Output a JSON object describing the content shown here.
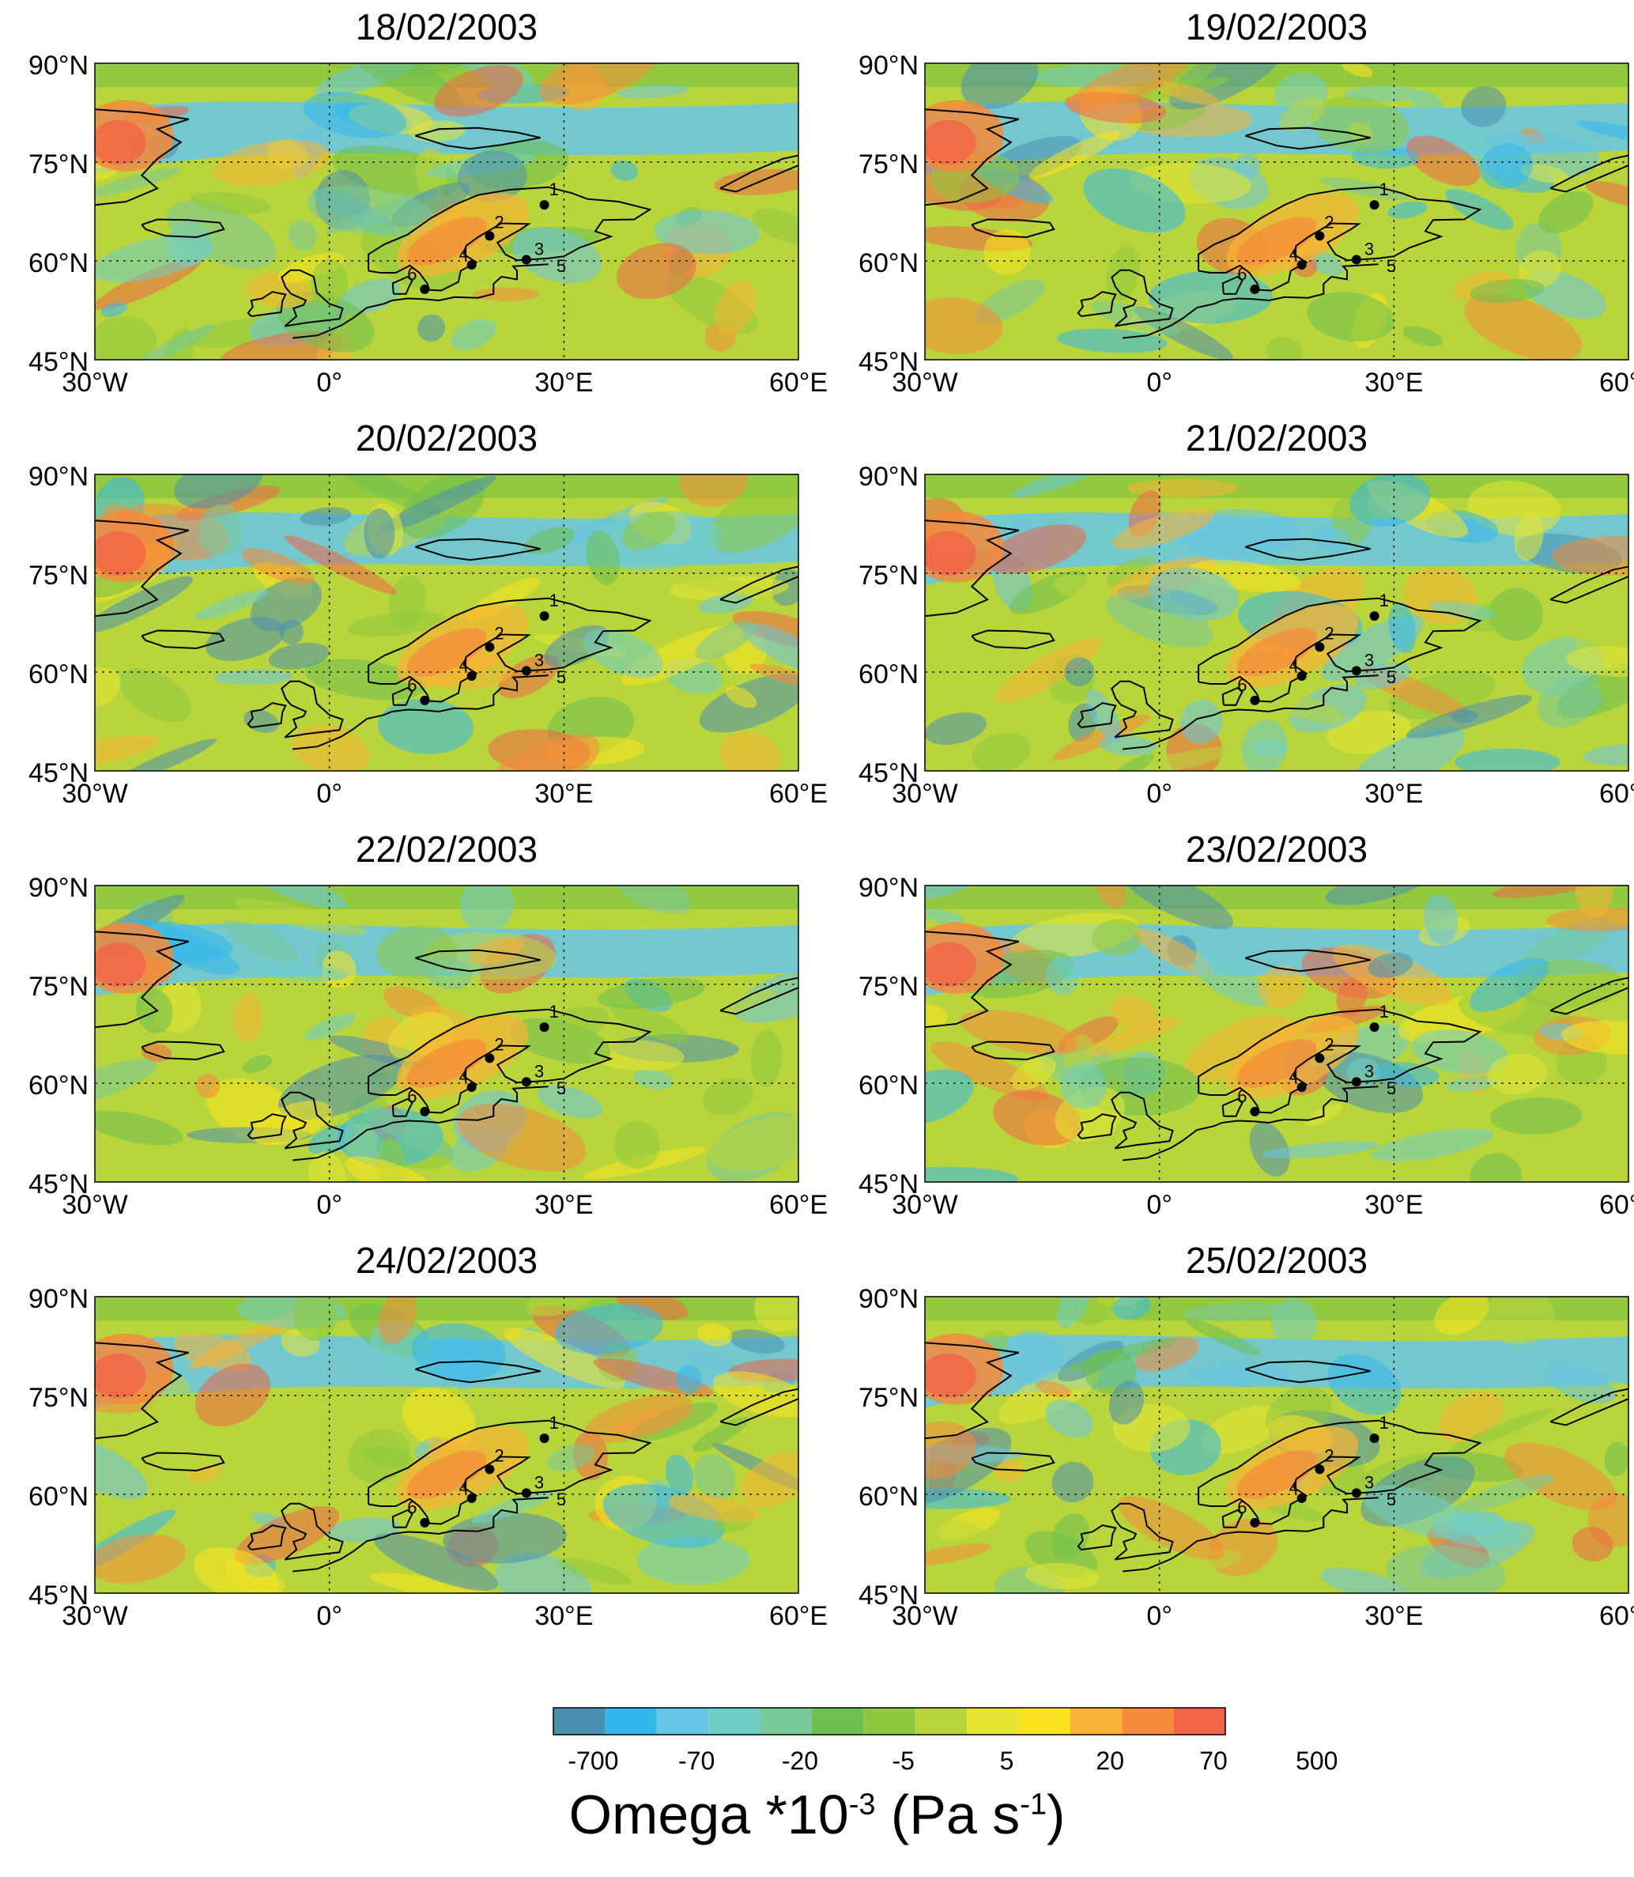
{
  "maps": [
    {
      "date": "18/02/2003"
    },
    {
      "date": "19/02/2003"
    },
    {
      "date": "20/02/2003"
    },
    {
      "date": "21/02/2003"
    },
    {
      "date": "22/02/2003"
    },
    {
      "date": "23/02/2003"
    },
    {
      "date": "24/02/2003"
    },
    {
      "date": "25/02/2003"
    }
  ],
  "lat_ticks": [
    {
      "value": 90,
      "label": "90°N"
    },
    {
      "value": 75,
      "label": "75°N"
    },
    {
      "value": 60,
      "label": "60°N"
    },
    {
      "value": 45,
      "label": "45°N"
    }
  ],
  "lon_ticks": [
    {
      "value": -30,
      "label": "30°W"
    },
    {
      "value": 0,
      "label": "0°"
    },
    {
      "value": 30,
      "label": "30°E"
    },
    {
      "value": 60,
      "label": "60°E"
    }
  ],
  "stations": [
    {
      "id": "1",
      "lon": 27.5,
      "lat": 68.5
    },
    {
      "id": "2",
      "lon": 20.5,
      "lat": 63.8
    },
    {
      "id": "3",
      "lon": 25.2,
      "lat": 60.2
    },
    {
      "id": "4",
      "lon": 18.2,
      "lat": 59.4
    },
    {
      "id": "5",
      "lon": 24.8,
      "lat": 59.5
    },
    {
      "id": "6",
      "lon": 12.2,
      "lat": 55.7
    }
  ],
  "colorbar": {
    "colors": [
      "#4a8fb0",
      "#33b8ee",
      "#66c5e6",
      "#6fcdc8",
      "#78c99a",
      "#6dbf4f",
      "#8ec83e",
      "#b9d53c",
      "#e6e632",
      "#fbe31e",
      "#f9b233",
      "#f68a3a",
      "#f26446"
    ],
    "tick_labels": [
      "-700",
      "-70",
      "-20",
      "-5",
      "5",
      "20",
      "70",
      "500"
    ]
  },
  "caption": {
    "base": "Omega *10",
    "exponent": "-3",
    "units": " (Pa s",
    "units_exp": "-1",
    "close": ")"
  }
}
